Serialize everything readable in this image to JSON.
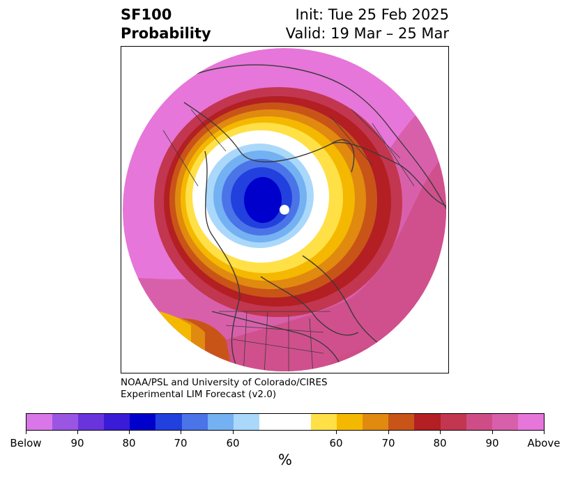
{
  "title": {
    "left_line1": "SF100",
    "left_line2": "Probability",
    "right_line1": "Init: Tue 25 Feb 2025",
    "right_line2": "Valid: 19 Mar – 25 Mar"
  },
  "credit": {
    "line1": "NOAA/PSL and University of Colorado/CIRES",
    "line2": "Experimental LIM Forecast (v2.0)"
  },
  "colorbar": {
    "unit": "%",
    "tick_labels": [
      "Below",
      "90",
      "80",
      "70",
      "60",
      "60",
      "70",
      "80",
      "90",
      "Above"
    ],
    "colors": [
      "#d977e8",
      "#9a55e3",
      "#6a34dd",
      "#3a1bd6",
      "#0000cc",
      "#2240dd",
      "#4a74e8",
      "#74b1f2",
      "#aad8fa",
      "#ffffff",
      "#ffe047",
      "#f5b800",
      "#e08a10",
      "#c95418",
      "#b31f22",
      "#c23650",
      "#cf4d87",
      "#d860ab",
      "#e676d9"
    ]
  },
  "map": {
    "projection": "north-polar stereographic",
    "dominant_fill": "above",
    "low_center": "below"
  }
}
